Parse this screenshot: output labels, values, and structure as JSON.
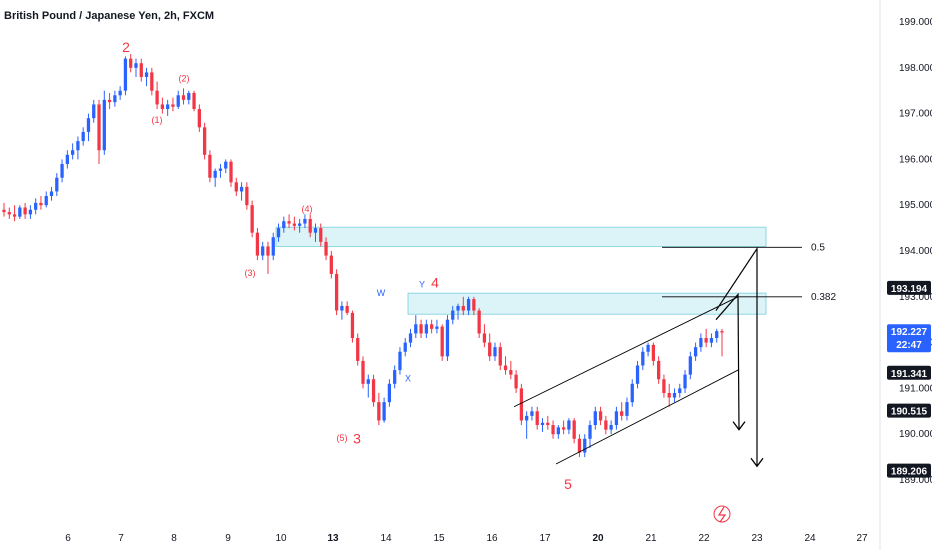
{
  "title": "British Pound / Japanese Yen, 2h, FXCM",
  "colors": {
    "up": "#2962ff",
    "down": "#f23645",
    "wave_primary": "#f23645",
    "wave_secondary": "#2962ff",
    "zone_fill": "#d6f2f7",
    "zone_stroke": "#5fc8d8",
    "line": "#000000",
    "current_price_bg": "#2962ff"
  },
  "chart_data": {
    "type": "candlestick",
    "symbol": "GBPJPY",
    "timeframe": "2h",
    "ylim": [
      188.9,
      199.4
    ],
    "y_ticks": [
      "199.000",
      "198.000",
      "197.000",
      "196.000",
      "195.000",
      "194.000",
      "193.000",
      "192.000",
      "191.000",
      "190.000",
      "189.000"
    ],
    "x_ticks": [
      "6",
      "7",
      "8",
      "9",
      "10",
      "13",
      "14",
      "15",
      "16",
      "17",
      "20",
      "21",
      "22",
      "23",
      "24",
      "27"
    ],
    "bold_x_ticks": [
      "13",
      "20"
    ],
    "price_badges": [
      {
        "text": "193.194",
        "value": 193.194,
        "style": "dark"
      },
      {
        "text": "192.227",
        "value": 192.227,
        "style": "current",
        "countdown": "22:47"
      },
      {
        "text": "191.341",
        "value": 191.341,
        "style": "dark"
      },
      {
        "text": "190.515",
        "value": 190.515,
        "style": "dark"
      },
      {
        "text": "189.206",
        "value": 189.206,
        "style": "dark"
      }
    ],
    "fib_levels": [
      {
        "label": "0.5",
        "value": 194.08
      },
      {
        "label": "0.382",
        "value": 193.0
      }
    ],
    "resistance_zones": [
      {
        "x_from": "10",
        "x_to": "23+",
        "y_low": 194.1,
        "y_high": 194.52
      },
      {
        "x_from": "14.5",
        "x_to": "23+",
        "y_low": 192.62,
        "y_high": 193.08
      }
    ],
    "wave_labels_primary": [
      "2",
      "3",
      "4",
      "5"
    ],
    "wave_labels_secondary": [
      "(1)",
      "(2)",
      "(3)",
      "(4)",
      "(5)"
    ],
    "wave_labels_corrective": [
      "W",
      "X",
      "Y"
    ],
    "projection_targets": [
      190.1,
      189.3
    ],
    "candles": [
      [
        194.9,
        195.05,
        194.75,
        194.85
      ],
      [
        194.85,
        194.95,
        194.7,
        194.8
      ],
      [
        194.8,
        195.0,
        194.65,
        194.75
      ],
      [
        194.75,
        195.0,
        194.7,
        194.95
      ],
      [
        194.95,
        195.05,
        194.7,
        194.8
      ],
      [
        194.8,
        195.0,
        194.7,
        194.9
      ],
      [
        194.9,
        195.15,
        194.8,
        195.05
      ],
      [
        195.05,
        195.2,
        194.9,
        195.0
      ],
      [
        195.0,
        195.3,
        194.95,
        195.2
      ],
      [
        195.2,
        195.4,
        195.1,
        195.3
      ],
      [
        195.3,
        195.7,
        195.2,
        195.6
      ],
      [
        195.6,
        196.0,
        195.5,
        195.9
      ],
      [
        195.9,
        196.2,
        195.8,
        196.1
      ],
      [
        196.1,
        196.35,
        196.0,
        196.2
      ],
      [
        196.2,
        196.5,
        196.0,
        196.4
      ],
      [
        196.4,
        196.7,
        196.3,
        196.6
      ],
      [
        196.6,
        197.0,
        196.4,
        196.9
      ],
      [
        196.9,
        197.3,
        196.8,
        197.2
      ],
      [
        197.2,
        197.3,
        195.9,
        196.2
      ],
      [
        196.2,
        197.5,
        196.1,
        197.3
      ],
      [
        197.3,
        197.45,
        197.1,
        197.25
      ],
      [
        197.25,
        197.5,
        197.15,
        197.4
      ],
      [
        197.4,
        197.6,
        197.3,
        197.5
      ],
      [
        197.5,
        198.25,
        197.4,
        198.2
      ],
      [
        198.2,
        198.3,
        197.9,
        198.0
      ],
      [
        198.0,
        198.2,
        197.8,
        198.1
      ],
      [
        198.1,
        198.2,
        197.7,
        197.8
      ],
      [
        197.8,
        198.0,
        197.6,
        197.9
      ],
      [
        197.9,
        198.0,
        197.4,
        197.5
      ],
      [
        197.5,
        197.7,
        197.1,
        197.2
      ],
      [
        197.2,
        197.35,
        197.0,
        197.1
      ],
      [
        197.1,
        197.3,
        196.95,
        197.2
      ],
      [
        197.2,
        197.35,
        197.05,
        197.15
      ],
      [
        197.15,
        197.5,
        197.1,
        197.4
      ],
      [
        197.4,
        197.55,
        197.2,
        197.3
      ],
      [
        197.3,
        197.5,
        197.2,
        197.45
      ],
      [
        197.45,
        197.5,
        197.05,
        197.1
      ],
      [
        197.1,
        197.2,
        196.6,
        196.7
      ],
      [
        196.7,
        196.8,
        196.0,
        196.1
      ],
      [
        196.1,
        196.2,
        195.5,
        195.6
      ],
      [
        195.6,
        195.8,
        195.4,
        195.75
      ],
      [
        195.75,
        195.9,
        195.6,
        195.8
      ],
      [
        195.8,
        196.0,
        195.7,
        195.95
      ],
      [
        195.95,
        196.0,
        195.4,
        195.5
      ],
      [
        195.5,
        195.6,
        195.2,
        195.3
      ],
      [
        195.3,
        195.5,
        195.1,
        195.4
      ],
      [
        195.4,
        195.5,
        194.9,
        195.0
      ],
      [
        195.0,
        195.1,
        194.3,
        194.4
      ],
      [
        194.4,
        194.5,
        193.8,
        193.9
      ],
      [
        193.9,
        194.2,
        193.8,
        194.1
      ],
      [
        194.1,
        194.2,
        193.5,
        193.9
      ],
      [
        193.9,
        194.4,
        193.8,
        194.3
      ],
      [
        194.3,
        194.6,
        194.2,
        194.5
      ],
      [
        194.5,
        194.75,
        194.4,
        194.65
      ],
      [
        194.65,
        194.8,
        194.5,
        194.6
      ],
      [
        194.6,
        194.75,
        194.45,
        194.55
      ],
      [
        194.55,
        194.7,
        194.4,
        194.6
      ],
      [
        194.6,
        194.8,
        194.5,
        194.7
      ],
      [
        194.7,
        194.8,
        194.3,
        194.4
      ],
      [
        194.4,
        194.6,
        194.2,
        194.5
      ],
      [
        194.5,
        194.6,
        194.1,
        194.2
      ],
      [
        194.2,
        194.3,
        193.8,
        193.9
      ],
      [
        193.9,
        194.0,
        193.4,
        193.5
      ],
      [
        193.5,
        193.6,
        192.6,
        192.7
      ],
      [
        192.7,
        192.9,
        192.5,
        192.8
      ],
      [
        192.8,
        192.9,
        192.6,
        192.65
      ],
      [
        192.65,
        192.7,
        192.0,
        192.1
      ],
      [
        192.1,
        192.2,
        191.5,
        191.6
      ],
      [
        191.6,
        191.7,
        191.0,
        191.1
      ],
      [
        191.1,
        191.3,
        190.8,
        191.2
      ],
      [
        191.2,
        191.3,
        190.6,
        190.7
      ],
      [
        190.7,
        190.9,
        190.2,
        190.3
      ],
      [
        190.3,
        190.8,
        190.25,
        190.7
      ],
      [
        190.7,
        191.2,
        190.6,
        191.1
      ],
      [
        191.1,
        191.5,
        191.0,
        191.4
      ],
      [
        191.4,
        191.9,
        191.3,
        191.8
      ],
      [
        191.8,
        192.1,
        191.7,
        192.0
      ],
      [
        192.0,
        192.3,
        191.9,
        192.2
      ],
      [
        192.2,
        192.6,
        192.1,
        192.4
      ],
      [
        192.4,
        192.5,
        192.1,
        192.2
      ],
      [
        192.2,
        192.5,
        192.1,
        192.4
      ],
      [
        192.4,
        192.5,
        192.2,
        192.3
      ],
      [
        192.3,
        192.5,
        192.2,
        192.35
      ],
      [
        192.35,
        192.4,
        191.6,
        191.7
      ],
      [
        191.7,
        192.6,
        191.6,
        192.5
      ],
      [
        192.5,
        192.8,
        192.4,
        192.7
      ],
      [
        192.7,
        192.85,
        192.5,
        192.8
      ],
      [
        192.8,
        193.0,
        192.6,
        192.7
      ],
      [
        192.7,
        193.0,
        192.6,
        192.95
      ],
      [
        192.95,
        193.0,
        192.6,
        192.7
      ],
      [
        192.7,
        192.75,
        192.1,
        192.2
      ],
      [
        192.2,
        192.4,
        191.9,
        192.0
      ],
      [
        192.0,
        192.2,
        191.6,
        191.7
      ],
      [
        191.7,
        192.0,
        191.6,
        191.9
      ],
      [
        191.9,
        192.0,
        191.4,
        191.5
      ],
      [
        191.5,
        191.7,
        191.3,
        191.4
      ],
      [
        191.4,
        191.6,
        191.2,
        191.3
      ],
      [
        191.3,
        191.4,
        190.9,
        191.0
      ],
      [
        191.0,
        191.1,
        190.2,
        190.3
      ],
      [
        190.3,
        190.5,
        189.9,
        190.4
      ],
      [
        190.4,
        190.6,
        190.3,
        190.5
      ],
      [
        190.5,
        190.6,
        190.1,
        190.2
      ],
      [
        190.2,
        190.35,
        190.05,
        190.25
      ],
      [
        190.25,
        190.4,
        190.1,
        190.2
      ],
      [
        190.2,
        190.3,
        189.9,
        190.0
      ],
      [
        190.0,
        190.2,
        189.9,
        190.15
      ],
      [
        190.15,
        190.3,
        190.0,
        190.1
      ],
      [
        190.1,
        190.35,
        190.0,
        190.3
      ],
      [
        190.3,
        190.35,
        189.8,
        189.9
      ],
      [
        189.9,
        190.0,
        189.5,
        189.6
      ],
      [
        189.6,
        190.0,
        189.5,
        189.9
      ],
      [
        189.9,
        190.3,
        189.7,
        190.2
      ],
      [
        190.2,
        190.6,
        190.1,
        190.5
      ],
      [
        190.5,
        190.6,
        190.2,
        190.3
      ],
      [
        190.3,
        190.4,
        190.0,
        190.1
      ],
      [
        190.1,
        190.3,
        190.0,
        190.2
      ],
      [
        190.2,
        190.6,
        190.1,
        190.5
      ],
      [
        190.5,
        190.7,
        190.3,
        190.4
      ],
      [
        190.4,
        190.8,
        190.3,
        190.7
      ],
      [
        190.7,
        191.2,
        190.6,
        191.1
      ],
      [
        191.1,
        191.6,
        191.0,
        191.5
      ],
      [
        191.5,
        191.9,
        191.4,
        191.8
      ],
      [
        191.8,
        192.0,
        191.7,
        191.95
      ],
      [
        191.95,
        192.0,
        191.5,
        191.6
      ],
      [
        191.6,
        191.7,
        191.1,
        191.2
      ],
      [
        191.2,
        191.3,
        190.8,
        190.9
      ],
      [
        190.9,
        191.1,
        190.6,
        190.8
      ],
      [
        190.8,
        191.0,
        190.7,
        190.9
      ],
      [
        190.9,
        191.1,
        190.8,
        191.0
      ],
      [
        191.0,
        191.4,
        190.9,
        191.3
      ],
      [
        191.3,
        191.8,
        191.2,
        191.7
      ],
      [
        191.7,
        192.0,
        191.6,
        191.9
      ],
      [
        191.9,
        192.2,
        191.8,
        192.1
      ],
      [
        192.1,
        192.3,
        191.9,
        192.0
      ],
      [
        192.0,
        192.2,
        191.9,
        192.1
      ],
      [
        192.1,
        192.3,
        192.0,
        192.25
      ],
      [
        192.25,
        192.3,
        191.7,
        192.22
      ]
    ]
  }
}
